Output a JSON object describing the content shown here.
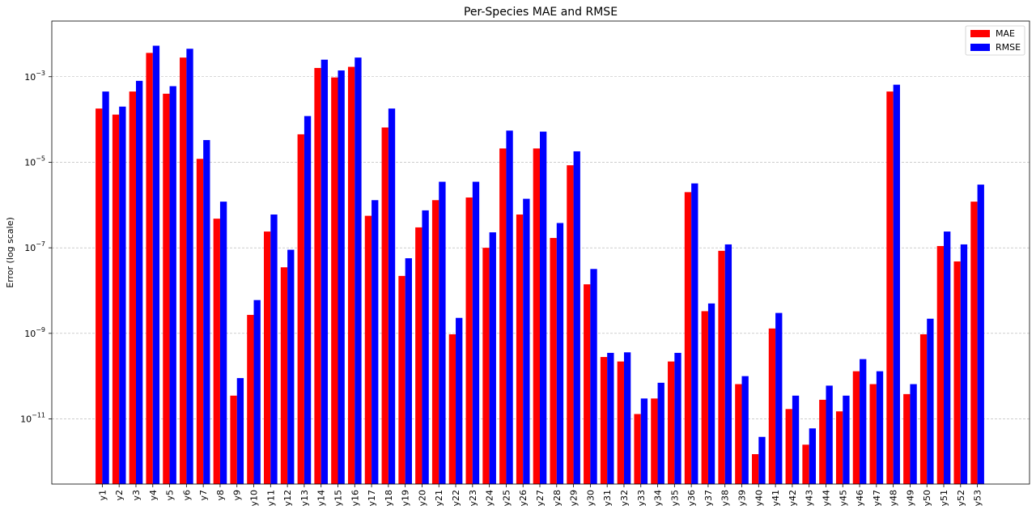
{
  "chart_data": {
    "type": "bar",
    "title": "Per-Species MAE and RMSE",
    "xlabel": "",
    "ylabel": "Error (log scale)",
    "yscale": "log",
    "ylim": [
      3e-13,
      0.02
    ],
    "y_ticks": [
      1e-11,
      1e-09,
      1e-07,
      1e-05,
      0.001
    ],
    "y_tick_labels": [
      "10",
      "10",
      "10",
      "10",
      "10"
    ],
    "y_tick_exponents": [
      "−11",
      "−9",
      "−7",
      "−5",
      "−3"
    ],
    "grid": "horizontal dashed",
    "legend_position": "top-right",
    "categories": [
      "y1",
      "y2",
      "y3",
      "y4",
      "y5",
      "y6",
      "y7",
      "y8",
      "y9",
      "y10",
      "y11",
      "y12",
      "y13",
      "y14",
      "y15",
      "y16",
      "y17",
      "y18",
      "y19",
      "y20",
      "y21",
      "y22",
      "y23",
      "y24",
      "y25",
      "y26",
      "y27",
      "y28",
      "y29",
      "y30",
      "y31",
      "y32",
      "y33",
      "y34",
      "y35",
      "y36",
      "y37",
      "y38",
      "y39",
      "y40",
      "y41",
      "y42",
      "y43",
      "y44",
      "y45",
      "y46",
      "y47",
      "y48",
      "y49",
      "y50",
      "y51",
      "y52",
      "y53"
    ],
    "series": [
      {
        "name": "MAE",
        "color": "#ff0000",
        "values": [
          0.00018,
          0.00013,
          0.00045,
          0.0036,
          0.0004,
          0.0028,
          1.2e-05,
          4.8e-07,
          3.5e-11,
          2.7e-09,
          2.4e-07,
          3.5e-08,
          4.5e-05,
          0.0016,
          0.00096,
          0.0017,
          5.6e-07,
          6.5e-05,
          2.2e-08,
          3e-07,
          1.3e-06,
          9.5e-10,
          1.5e-06,
          1e-07,
          2.1e-05,
          6e-07,
          2.1e-05,
          1.7e-07,
          8.5e-06,
          1.4e-08,
          2.8e-10,
          2.2e-10,
          1.3e-11,
          3e-11,
          2.2e-10,
          2e-06,
          3.3e-09,
          8.5e-08,
          6.5e-11,
          1.5e-12,
          1.3e-09,
          1.7e-11,
          2.5e-12,
          2.8e-11,
          1.5e-11,
          1.3e-10,
          6.5e-11,
          0.00045,
          3.8e-11,
          9.5e-10,
          1.1e-07,
          4.8e-08,
          1.2e-06
        ]
      },
      {
        "name": "RMSE",
        "color": "#0000ff",
        "values": [
          0.00045,
          0.0002,
          0.0008,
          0.0053,
          0.0006,
          0.0045,
          3.3e-05,
          1.2e-06,
          9e-11,
          6e-09,
          6e-07,
          9e-08,
          0.00012,
          0.0025,
          0.0014,
          0.0028,
          1.3e-06,
          0.00018,
          5.7e-08,
          7.5e-07,
          3.5e-06,
          2.3e-09,
          3.5e-06,
          2.3e-07,
          5.5e-05,
          1.4e-06,
          5.2e-05,
          3.8e-07,
          1.8e-05,
          3.2e-08,
          3.5e-10,
          3.6e-10,
          3e-11,
          7e-11,
          3.5e-10,
          3.2e-06,
          5e-09,
          1.2e-07,
          1e-10,
          3.8e-12,
          3e-09,
          3.5e-11,
          6e-12,
          6e-11,
          3.5e-11,
          2.5e-10,
          1.3e-10,
          0.00065,
          6.5e-11,
          2.2e-09,
          2.4e-07,
          1.2e-07,
          3e-06
        ]
      }
    ]
  }
}
